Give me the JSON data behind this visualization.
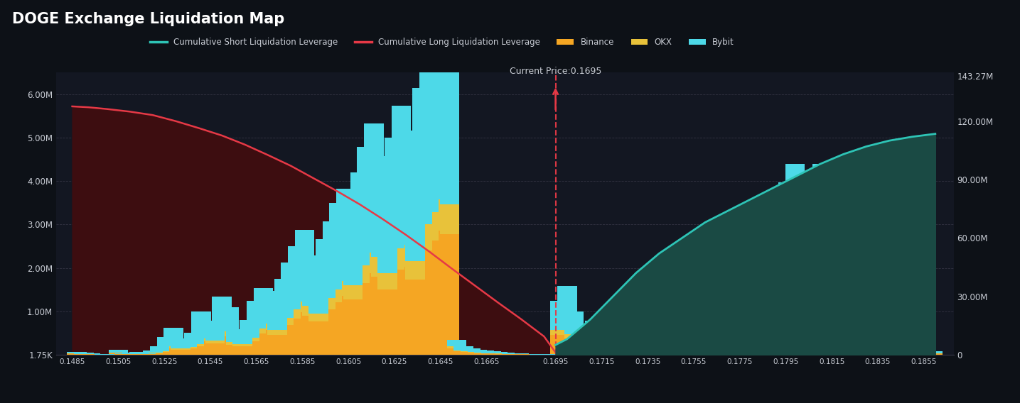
{
  "title": "DOGE Exchange Liquidation Map",
  "background_color": "#0d1117",
  "plot_bg_color": "#131722",
  "current_price": 0.1695,
  "current_price_label": "Current Price:0.1695",
  "x_ticks": [
    0.1485,
    0.1505,
    0.1525,
    0.1545,
    0.1565,
    0.1585,
    0.1605,
    0.1625,
    0.1645,
    0.1665,
    0.1695,
    0.1715,
    0.1735,
    0.1755,
    0.1775,
    0.1795,
    0.1815,
    0.1835,
    0.1855
  ],
  "ylim_left": [
    0,
    6500000
  ],
  "ylim_right": [
    0,
    145000000
  ],
  "y_ticks_left": [
    1750,
    1000000,
    2000000,
    3000000,
    4000000,
    5000000,
    6000000
  ],
  "y_tick_labels_left": [
    "1.75K",
    "1.00M",
    "2.00M",
    "3.00M",
    "4.00M",
    "5.00M",
    "6.00M"
  ],
  "y_ticks_right": [
    0,
    30000000,
    60000000,
    90000000,
    120000000,
    143270000
  ],
  "y_tick_labels_right": [
    "0",
    "30.00M",
    "60.00M",
    "90.00M",
    "120.00M",
    "143.27M"
  ],
  "grid_color": "#3a3a4a",
  "bar_width": 0.00085,
  "colors": {
    "binance": "#f5a623",
    "okx": "#e8c23a",
    "bybit": "#4dd9e8",
    "cum_short": "#2ec4b6",
    "cum_short_fill": "#1a4a44",
    "cum_long": "#e63946",
    "cum_long_fill": "#3d0d10",
    "current_price_line": "#e63946",
    "text": "#c8ccd4",
    "title": "#ffffff"
  },
  "bar_data": {
    "positions": [
      0.1487,
      0.149,
      0.1493,
      0.1496,
      0.1499,
      0.1502,
      0.1505,
      0.1508,
      0.1511,
      0.1514,
      0.1517,
      0.152,
      0.1523,
      0.1526,
      0.1529,
      0.1532,
      0.1535,
      0.1538,
      0.1541,
      0.1544,
      0.1547,
      0.155,
      0.1553,
      0.1556,
      0.1559,
      0.1562,
      0.1565,
      0.1568,
      0.1571,
      0.1574,
      0.1577,
      0.158,
      0.1583,
      0.1586,
      0.1589,
      0.1592,
      0.1595,
      0.1598,
      0.1601,
      0.1604,
      0.1607,
      0.161,
      0.1613,
      0.1616,
      0.1619,
      0.1622,
      0.1625,
      0.1628,
      0.1631,
      0.1634,
      0.1637,
      0.164,
      0.1643,
      0.1646,
      0.1649,
      0.1652,
      0.1655,
      0.1658,
      0.1661,
      0.1664,
      0.1667,
      0.167,
      0.1673,
      0.1676,
      0.1679,
      0.1682,
      0.1685,
      0.1688,
      0.1691,
      0.1694,
      0.1697,
      0.17,
      0.1703,
      0.1706,
      0.1709,
      0.1712,
      0.1715,
      0.1718,
      0.1721,
      0.1724,
      0.1727,
      0.173,
      0.1733,
      0.1736,
      0.1739,
      0.1742,
      0.1745,
      0.1748,
      0.1751,
      0.1754,
      0.1757,
      0.176,
      0.1763,
      0.1766,
      0.1769,
      0.1772,
      0.1775,
      0.1778,
      0.1781,
      0.1784,
      0.1787,
      0.179,
      0.1793,
      0.1796,
      0.1799,
      0.1802,
      0.1805,
      0.1808,
      0.1811,
      0.1814,
      0.1817,
      0.182,
      0.1823,
      0.1826,
      0.1829,
      0.1832,
      0.1835,
      0.1838,
      0.1841,
      0.1844,
      0.1847,
      0.185,
      0.1853,
      0.1856,
      0.1859
    ],
    "binance": [
      25000,
      18000,
      12000,
      8000,
      4000,
      6000,
      45000,
      12000,
      15000,
      22000,
      8000,
      35000,
      70000,
      150000,
      220000,
      110000,
      140000,
      190000,
      380000,
      300000,
      260000,
      530000,
      420000,
      230000,
      190000,
      310000,
      490000,
      600000,
      570000,
      460000,
      680000,
      830000,
      980000,
      1130000,
      900000,
      760000,
      1050000,
      1200000,
      1360000,
      1500000,
      1280000,
      1650000,
      1880000,
      2100000,
      1800000,
      1500000,
      1960000,
      2250000,
      2030000,
      1730000,
      2400000,
      2630000,
      2860000,
      3010000,
      2780000,
      150000,
      80000,
      60000,
      45000,
      38000,
      30000,
      22000,
      18000,
      15000,
      11000,
      8000,
      6000,
      4000,
      3000,
      2000,
      450000,
      600000,
      380000,
      230000,
      150000,
      300000,
      110000,
      75000,
      60000,
      45000,
      38000,
      30000,
      22000,
      15000,
      11000,
      150000,
      75000,
      38000,
      22000,
      15000,
      300000,
      220000,
      150000,
      110000,
      450000,
      600000,
      530000,
      680000,
      750000,
      900000,
      1050000,
      1200000,
      1360000,
      1500000,
      1650000,
      750000,
      600000,
      450000,
      1650000,
      300000,
      1350000,
      450000,
      300000,
      220000,
      150000,
      110000,
      380000,
      220000,
      150000,
      110000,
      75000,
      60000,
      45000,
      38000,
      30000
    ],
    "okx": [
      4000,
      2500,
      1800,
      1200,
      800,
      1500,
      8000,
      2500,
      3000,
      4500,
      1500,
      8000,
      15000,
      38000,
      60000,
      30000,
      38000,
      53000,
      90000,
      75000,
      68000,
      135000,
      113000,
      60000,
      53000,
      75000,
      120000,
      150000,
      143000,
      113000,
      165000,
      210000,
      248000,
      285000,
      225000,
      188000,
      263000,
      300000,
      338000,
      375000,
      315000,
      413000,
      465000,
      525000,
      450000,
      375000,
      488000,
      563000,
      503000,
      428000,
      600000,
      653000,
      713000,
      750000,
      690000,
      38000,
      22000,
      15000,
      11000,
      9000,
      7500,
      6000,
      4500,
      3800,
      3000,
      2200,
      1500,
      1100,
      900,
      750,
      113000,
      150000,
      90000,
      60000,
      38000,
      75000,
      30000,
      19000,
      15000,
      11000,
      9000,
      7500,
      6000,
      3800,
      3000,
      38000,
      19000,
      9000,
      6000,
      3800,
      75000,
      56000,
      38000,
      30000,
      113000,
      150000,
      131000,
      169000,
      188000,
      225000,
      263000,
      300000,
      338000,
      375000,
      413000,
      188000,
      150000,
      113000,
      413000,
      75000,
      338000,
      113000,
      75000,
      56000,
      38000,
      30000,
      94000,
      56000,
      38000,
      30000,
      19000,
      15000,
      11000,
      9000,
      7500
    ],
    "bybit": [
      38000,
      22000,
      15000,
      11000,
      7500,
      11000,
      60000,
      15000,
      22000,
      38000,
      15000,
      60000,
      113000,
      225000,
      338000,
      150000,
      188000,
      263000,
      525000,
      413000,
      375000,
      675000,
      563000,
      300000,
      263000,
      413000,
      638000,
      788000,
      750000,
      600000,
      900000,
      1088000,
      1275000,
      1463000,
      1163000,
      975000,
      1350000,
      1575000,
      1800000,
      1950000,
      1650000,
      2138000,
      2438000,
      2700000,
      2325000,
      1950000,
      2550000,
      2925000,
      2625000,
      2250000,
      3150000,
      3450000,
      3750000,
      3900000,
      3600000,
      150000,
      90000,
      75000,
      56000,
      45000,
      38000,
      30000,
      22000,
      19000,
      15000,
      11000,
      7500,
      6000,
      4500,
      3800,
      675000,
      825000,
      525000,
      300000,
      210000,
      413000,
      150000,
      98000,
      75000,
      60000,
      49000,
      38000,
      30000,
      22000,
      15000,
      210000,
      105000,
      53000,
      30000,
      22000,
      413000,
      300000,
      210000,
      150000,
      600000,
      825000,
      713000,
      938000,
      1050000,
      1238000,
      1463000,
      1650000,
      1875000,
      2100000,
      2325000,
      1050000,
      825000,
      638000,
      2325000,
      413000,
      1875000,
      638000,
      413000,
      300000,
      210000,
      150000,
      525000,
      300000,
      210000,
      150000,
      105000,
      83000,
      64000,
      49000,
      38000
    ]
  },
  "cum_long": {
    "x": [
      0.1485,
      0.1492,
      0.15,
      0.151,
      0.152,
      0.153,
      0.154,
      0.155,
      0.156,
      0.157,
      0.158,
      0.159,
      0.16,
      0.161,
      0.162,
      0.163,
      0.164,
      0.165,
      0.166,
      0.167,
      0.168,
      0.169,
      0.1695
    ],
    "y": [
      5720000,
      5700000,
      5660000,
      5600000,
      5520000,
      5380000,
      5220000,
      5050000,
      4840000,
      4600000,
      4350000,
      4060000,
      3770000,
      3460000,
      3120000,
      2760000,
      2380000,
      1980000,
      1590000,
      1200000,
      820000,
      420000,
      50000
    ]
  },
  "cum_short": {
    "x": [
      0.1695,
      0.17,
      0.171,
      0.172,
      0.173,
      0.174,
      0.175,
      0.176,
      0.177,
      0.178,
      0.179,
      0.18,
      0.181,
      0.182,
      0.183,
      0.184,
      0.185,
      0.186
    ],
    "y": [
      5000000,
      8000000,
      18000000,
      30000000,
      42000000,
      52000000,
      60000000,
      68000000,
      74000000,
      80000000,
      86000000,
      92000000,
      98000000,
      103000000,
      107000000,
      110000000,
      112000000,
      113500000
    ]
  }
}
